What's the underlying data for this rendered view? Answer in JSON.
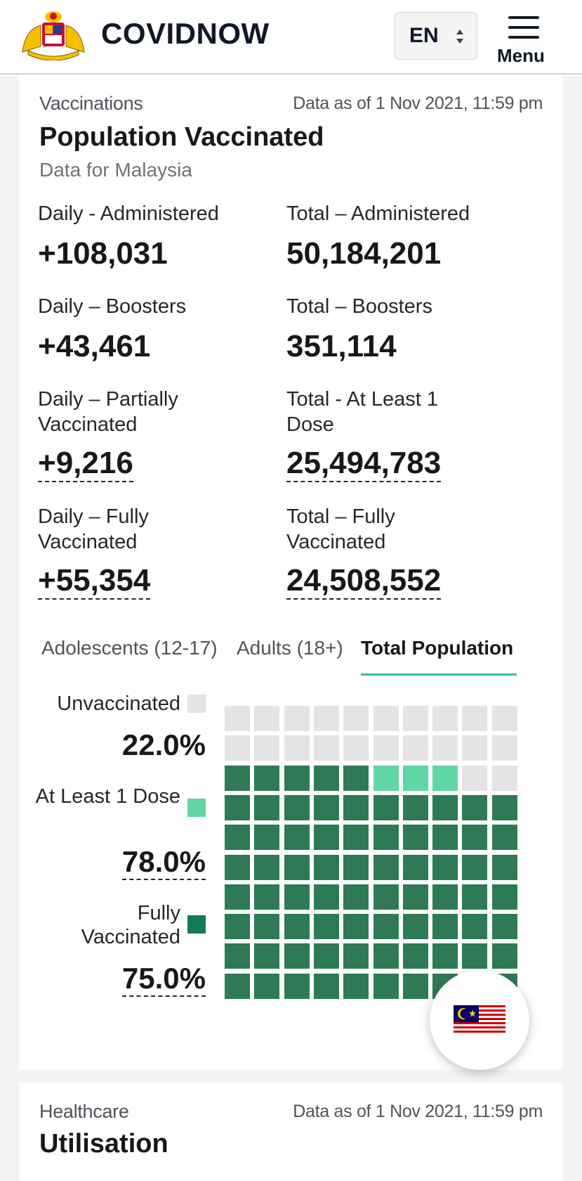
{
  "header": {
    "brand": "COVIDNOW",
    "language": "EN",
    "menu_label": "Menu"
  },
  "vaccination_card": {
    "eyebrow": "Vaccinations",
    "as_of": "Data as of 1 Nov 2021, 11:59 pm",
    "title": "Population Vaccinated",
    "subtitle": "Data for Malaysia",
    "stats": {
      "daily_administered": {
        "label": "Daily - Administered",
        "value": "+108,031"
      },
      "total_administered": {
        "label": "Total – Administered",
        "value": "50,184,201"
      },
      "daily_boosters": {
        "label": "Daily – Boosters",
        "value": "+43,461"
      },
      "total_boosters": {
        "label": "Total – Boosters",
        "value": "351,114"
      },
      "daily_partial": {
        "label": "Daily – Partially Vaccinated",
        "value": "+9,216"
      },
      "total_atleast1": {
        "label": "Total - At Least 1 Dose",
        "value": "25,494,783"
      },
      "daily_fully": {
        "label": "Daily – Fully Vaccinated",
        "value": "+55,354"
      },
      "total_fully": {
        "label": "Total – Fully Vaccinated",
        "value": "24,508,552"
      }
    },
    "tabs": [
      "Adolescents (12-17)",
      "Adults (18+)",
      "Total Population"
    ],
    "active_tab": "Total Population",
    "legend": {
      "unvaccinated": {
        "label": "Unvaccinated",
        "value": "22.0%",
        "color": "#e4e4e7"
      },
      "at_least_1": {
        "label": "At Least 1 Dose",
        "value": "78.0%",
        "color": "#5fd6a4"
      },
      "fully": {
        "label": "Fully Vaccinated",
        "value": "75.0%",
        "color": "#2d7a55"
      }
    }
  },
  "chart_data": {
    "type": "waffle",
    "total_cells": 100,
    "series": [
      {
        "name": "Unvaccinated",
        "value": 22.0,
        "color": "#e4e4e7"
      },
      {
        "name": "At Least 1 Dose",
        "value": 78.0,
        "color": "#5fd6a4"
      },
      {
        "name": "Fully Vaccinated",
        "value": 75.0,
        "color": "#2d7a55"
      }
    ]
  },
  "healthcare_card": {
    "eyebrow": "Healthcare",
    "as_of": "Data as of 1 Nov 2021, 11:59 pm",
    "title": "Utilisation"
  },
  "fab": {
    "icon": "malaysia-flag-icon"
  }
}
